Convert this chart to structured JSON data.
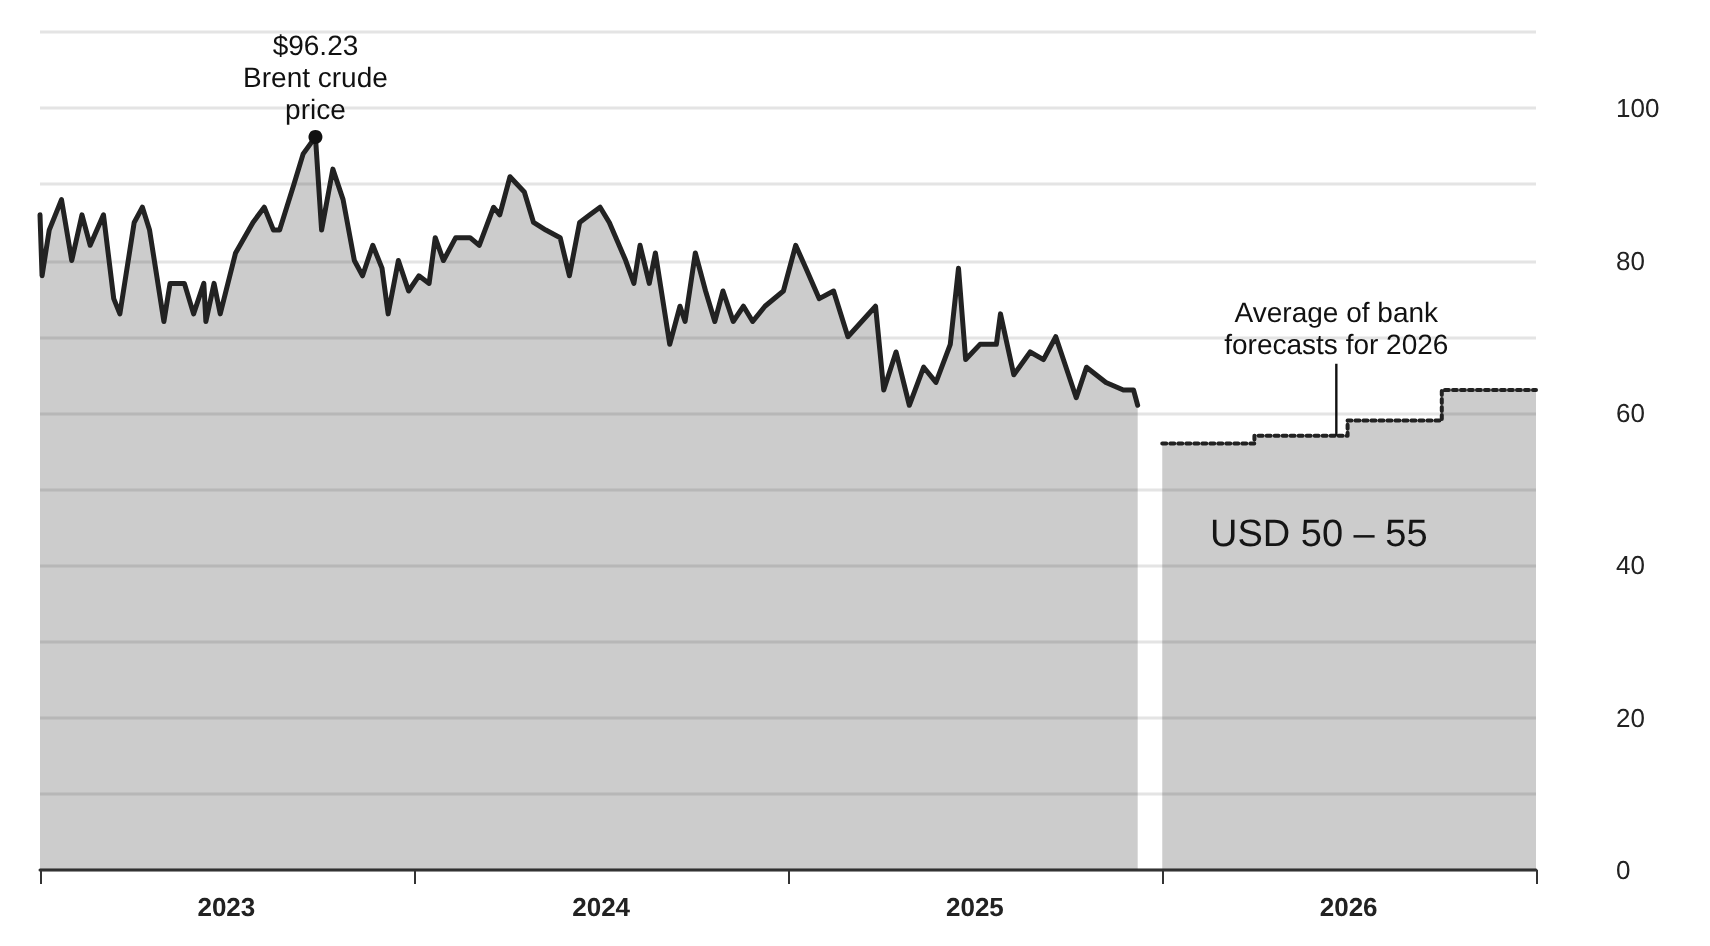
{
  "chart_data": {
    "type": "area",
    "xlim": [
      "2023-01-01",
      "2027-01-01"
    ],
    "xticks": [
      {
        "value": "2023-01-01",
        "label": null
      },
      {
        "value": "2023-07-02",
        "label": "2023"
      },
      {
        "value": "2024-01-01",
        "label": null
      },
      {
        "value": "2024-07-02",
        "label": "2024"
      },
      {
        "value": "2025-01-01",
        "label": null
      },
      {
        "value": "2025-07-02",
        "label": "2025"
      },
      {
        "value": "2026-01-01",
        "label": null
      },
      {
        "value": "2026-07-02",
        "label": "2026"
      },
      {
        "value": "2027-01-01",
        "label": null
      }
    ],
    "ylim": [
      0,
      110
    ],
    "yticks": [
      0,
      {
        "value": 10,
        "label": null
      },
      20,
      {
        "value": 30,
        "label": null
      },
      40,
      {
        "value": 50,
        "label": null
      },
      60,
      {
        "value": 70,
        "label": null
      },
      80,
      {
        "value": 90,
        "label": null
      },
      100,
      {
        "value": 110,
        "label": null
      }
    ],
    "grid": "y",
    "series": [
      {
        "color": "#222222",
        "x": [
          "2023-01-01",
          "2023-01-03",
          "2023-01-10",
          "2023-01-22",
          "2023-02-01",
          "2023-02-11",
          "2023-02-19",
          "2023-03-04",
          "2023-03-14",
          "2023-03-20",
          "2023-04-03",
          "2023-04-11",
          "2023-04-18",
          "2023-05-02",
          "2023-05-08",
          "2023-05-22",
          "2023-05-31",
          "2023-06-10",
          "2023-06-12",
          "2023-06-20",
          "2023-06-26",
          "2023-07-11",
          "2023-07-28",
          "2023-08-08",
          "2023-08-17",
          "2023-08-23",
          "2023-09-06",
          "2023-09-15",
          "2023-09-27",
          "2023-10-03",
          "2023-10-14",
          "2023-10-24",
          "2023-11-04",
          "2023-11-12",
          "2023-11-22",
          "2023-12-01",
          "2023-12-07",
          "2023-12-17",
          "2023-12-27",
          "2024-01-06",
          "2024-01-16",
          "2024-01-22",
          "2024-01-30",
          "2024-02-11",
          "2024-02-25",
          "2024-03-05",
          "2024-03-19",
          "2024-03-25",
          "2024-04-04",
          "2024-04-18",
          "2024-04-27",
          "2024-05-09",
          "2024-05-23",
          "2024-06-01",
          "2024-06-11",
          "2024-06-21",
          "2024-07-01",
          "2024-07-10",
          "2024-07-26",
          "2024-08-03",
          "2024-08-09",
          "2024-08-18",
          "2024-08-24",
          "2024-09-07",
          "2024-09-17",
          "2024-09-22",
          "2024-10-02",
          "2024-10-12",
          "2024-10-21",
          "2024-10-29",
          "2024-11-08",
          "2024-11-18",
          "2024-11-27",
          "2024-12-09",
          "2024-12-27",
          "2025-01-08",
          "2025-01-18",
          "2025-01-31",
          "2025-02-14",
          "2025-02-28",
          "2025-03-27",
          "2025-04-04",
          "2025-04-16",
          "2025-04-29",
          "2025-05-13",
          "2025-05-25",
          "2025-06-08",
          "2025-06-16",
          "2025-06-23",
          "2025-07-07",
          "2025-07-23",
          "2025-07-27",
          "2025-08-09",
          "2025-08-25",
          "2025-09-07",
          "2025-09-19",
          "2025-10-09",
          "2025-10-19",
          "2025-11-07",
          "2025-11-24",
          "2025-12-04",
          "2025-12-08"
        ],
        "values": [
          86,
          78,
          84,
          88,
          80,
          86,
          82,
          86,
          75,
          73,
          85,
          87,
          84,
          72,
          77,
          77,
          73,
          77,
          72,
          77,
          73,
          81,
          85,
          87,
          84,
          84,
          90,
          94,
          96.23,
          84,
          92,
          88,
          80,
          78,
          82,
          79,
          73,
          80,
          76,
          78,
          77,
          83,
          80,
          83,
          83,
          82,
          87,
          86,
          91,
          89,
          85,
          84,
          83,
          78,
          85,
          86,
          87,
          85,
          80,
          77,
          82,
          77,
          81,
          69,
          74,
          72,
          81,
          76,
          72,
          76,
          72,
          74,
          72,
          74,
          76,
          82,
          79,
          75,
          76,
          70,
          74,
          63,
          68,
          61,
          66,
          64,
          69,
          79,
          67,
          69,
          69,
          73,
          65,
          68,
          67,
          70,
          62,
          66,
          64,
          63,
          63,
          61
        ]
      },
      {
        "line_style": "dotted",
        "color": "#222222",
        "x": [
          "2026-01-01",
          "2026-04-01",
          "2026-04-01",
          "2026-07-01",
          "2026-07-01",
          "2026-10-01",
          "2026-10-01",
          "2027-01-01"
        ],
        "values": [
          56,
          56,
          57,
          57,
          59,
          59,
          63,
          63
        ]
      }
    ],
    "annotations": [
      {
        "text": "$96.23\nBrent crude\nprice",
        "x": "2023-09-27",
        "y": 96.23
      },
      {
        "text": "Average of bank\nforecasts for 2026",
        "x": "2026-06-20",
        "y": 57
      },
      "USD 50 – 55"
    ]
  }
}
